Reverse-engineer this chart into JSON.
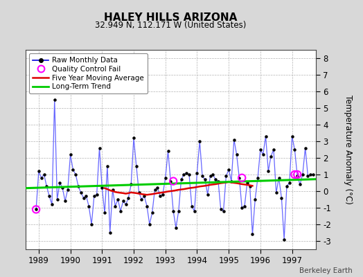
{
  "title": "HALEY HILLS ARIZONA",
  "subtitle": "32.949 N, 112.171 W (United States)",
  "ylabel": "Temperature Anomaly (°C)",
  "credit": "Berkeley Earth",
  "ylim": [
    -3.5,
    8.5
  ],
  "xlim": [
    1988.58,
    1997.75
  ],
  "yticks": [
    -3,
    -2,
    -1,
    0,
    1,
    2,
    3,
    4,
    5,
    6,
    7,
    8
  ],
  "xticks": [
    1989,
    1990,
    1991,
    1992,
    1993,
    1994,
    1995,
    1996,
    1997
  ],
  "bg_color": "#d8d8d8",
  "plot_bg_color": "#ffffff",
  "raw_line_color": "#6666ff",
  "raw_marker_color": "#000000",
  "ma_color": "#dd0000",
  "trend_color": "#00cc00",
  "qc_color": "#ff00ff",
  "raw_data_x": [
    1988.917,
    1989.0,
    1989.083,
    1989.167,
    1989.25,
    1989.333,
    1989.417,
    1989.5,
    1989.583,
    1989.667,
    1989.75,
    1989.833,
    1989.917,
    1990.0,
    1990.083,
    1990.167,
    1990.25,
    1990.333,
    1990.417,
    1990.5,
    1990.583,
    1990.667,
    1990.75,
    1990.833,
    1990.917,
    1991.0,
    1991.083,
    1991.167,
    1991.25,
    1991.333,
    1991.417,
    1991.5,
    1991.583,
    1991.667,
    1991.75,
    1991.833,
    1991.917,
    1992.0,
    1992.083,
    1992.167,
    1992.25,
    1992.333,
    1992.417,
    1992.5,
    1992.583,
    1992.667,
    1992.75,
    1992.833,
    1992.917,
    1993.0,
    1993.083,
    1993.167,
    1993.25,
    1993.333,
    1993.417,
    1993.5,
    1993.583,
    1993.667,
    1993.75,
    1993.833,
    1993.917,
    1994.0,
    1994.083,
    1994.167,
    1994.25,
    1994.333,
    1994.417,
    1994.5,
    1994.583,
    1994.667,
    1994.75,
    1994.833,
    1994.917,
    1995.0,
    1995.083,
    1995.167,
    1995.25,
    1995.333,
    1995.417,
    1995.5,
    1995.583,
    1995.667,
    1995.75,
    1995.833,
    1995.917,
    1996.0,
    1996.083,
    1996.167,
    1996.25,
    1996.333,
    1996.417,
    1996.5,
    1996.583,
    1996.667,
    1996.75,
    1996.833,
    1996.917,
    1997.0,
    1997.083,
    1997.167,
    1997.25,
    1997.333,
    1997.417,
    1997.5,
    1997.583,
    1997.667
  ],
  "raw_data_y": [
    -1.1,
    1.2,
    0.8,
    1.0,
    0.3,
    -0.3,
    -0.8,
    5.5,
    -0.5,
    0.5,
    0.2,
    -0.6,
    0.1,
    2.2,
    1.3,
    1.0,
    0.3,
    -0.1,
    -0.4,
    -0.3,
    -0.9,
    -2.0,
    -0.3,
    -0.2,
    2.6,
    0.2,
    -1.3,
    1.5,
    -2.5,
    0.1,
    -0.9,
    -0.5,
    -1.2,
    -0.6,
    -0.8,
    -0.4,
    0.4,
    3.2,
    1.5,
    -0.1,
    -0.5,
    -0.3,
    -0.9,
    -2.0,
    -1.3,
    0.1,
    0.2,
    -0.3,
    -0.2,
    0.8,
    2.4,
    0.6,
    -1.2,
    -2.2,
    -1.2,
    0.7,
    1.0,
    1.1,
    1.0,
    -0.9,
    -1.2,
    1.1,
    3.0,
    0.9,
    0.7,
    -0.2,
    0.9,
    1.0,
    0.7,
    0.6,
    -1.1,
    -1.2,
    0.9,
    1.3,
    0.6,
    3.1,
    2.2,
    0.8,
    -1.0,
    -0.9,
    0.5,
    0.3,
    -2.6,
    -0.5,
    0.8,
    2.5,
    2.2,
    3.3,
    1.2,
    2.1,
    2.5,
    -0.1,
    0.8,
    -0.4,
    -2.9,
    0.3,
    0.5,
    3.3,
    2.5,
    0.9,
    0.4,
    1.0,
    2.6,
    0.9,
    1.0,
    1.0
  ],
  "ma_x": [
    1991.083,
    1991.167,
    1991.25,
    1991.333,
    1991.417,
    1991.5,
    1991.583,
    1991.667,
    1991.75,
    1991.833,
    1991.917,
    1992.0,
    1992.083,
    1992.167,
    1992.25,
    1992.333,
    1992.417,
    1992.5,
    1992.583,
    1992.667,
    1992.75,
    1992.833,
    1992.917,
    1993.0,
    1993.083,
    1993.167,
    1993.25,
    1993.333,
    1993.417,
    1993.5,
    1993.583,
    1993.667,
    1993.75,
    1993.833,
    1993.917,
    1994.0,
    1994.083,
    1994.167,
    1994.25,
    1994.333,
    1994.417,
    1994.5,
    1994.583,
    1994.667,
    1994.75,
    1994.833,
    1994.917,
    1995.0,
    1995.083,
    1995.167,
    1995.25,
    1995.333,
    1995.417,
    1995.5,
    1995.583,
    1995.667,
    1995.75
  ],
  "ma_y": [
    0.18,
    0.12,
    0.05,
    0.0,
    -0.05,
    -0.08,
    -0.1,
    -0.12,
    -0.15,
    -0.12,
    -0.08,
    -0.1,
    -0.12,
    -0.15,
    -0.18,
    -0.2,
    -0.22,
    -0.2,
    -0.18,
    -0.15,
    -0.12,
    -0.1,
    -0.08,
    -0.05,
    -0.02,
    0.0,
    0.02,
    0.05,
    0.08,
    0.1,
    0.12,
    0.15,
    0.18,
    0.2,
    0.22,
    0.25,
    0.28,
    0.3,
    0.32,
    0.35,
    0.38,
    0.4,
    0.42,
    0.45,
    0.48,
    0.5,
    0.52,
    0.55,
    0.52,
    0.5,
    0.48,
    0.45,
    0.42,
    0.4,
    0.38,
    0.35,
    0.32
  ],
  "trend_x": [
    1988.58,
    1997.75
  ],
  "trend_y": [
    0.18,
    0.72
  ],
  "qc_x": [
    1988.917,
    1993.25,
    1995.417,
    1997.083,
    1997.167
  ],
  "qc_y": [
    -1.1,
    0.6,
    0.8,
    1.0,
    1.0
  ],
  "legend_line_color": "#0000dd"
}
